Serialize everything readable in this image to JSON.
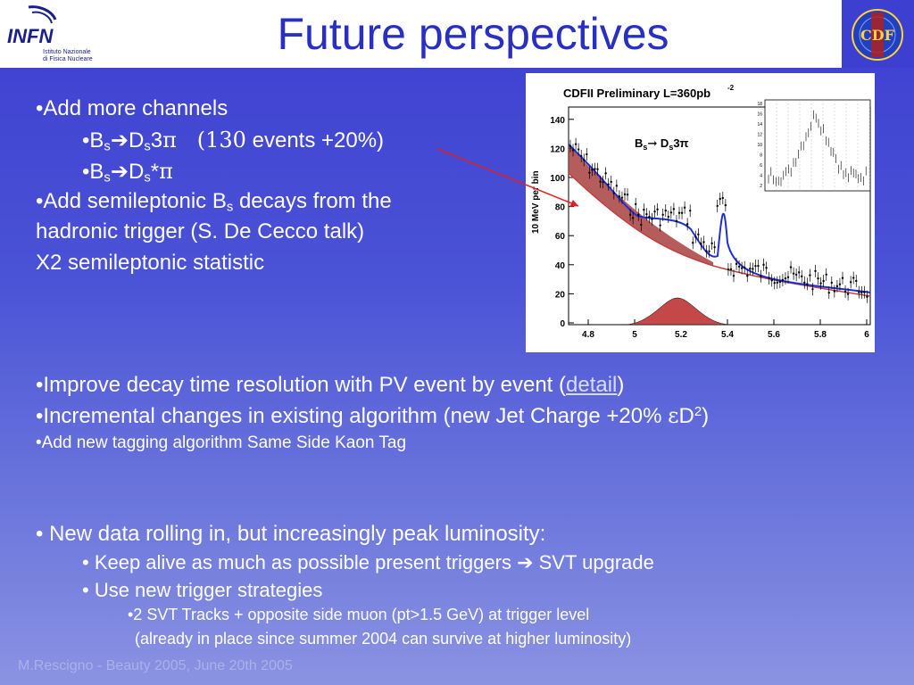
{
  "header": {
    "title": "Future perspectives",
    "infn_logo_text": "INFN",
    "infn_logo_sub1": "Istituto Nazionale",
    "infn_logo_sub2": "di Fisica Nucleare",
    "cdf_logo_text": "CDF"
  },
  "bullets_top": {
    "b1": "•Add more channels",
    "b1a_pre": "•B",
    "b1a_sub1": "s",
    "b1a_arrow": "➔",
    "b1a_d": "D",
    "b1a_sub2": "s",
    "b1a_mid": "3",
    "b1a_pi": "π",
    "b1a_paren": "   (130",
    "b1a_post": " events +20%)",
    "b1b_pre": "•B",
    "b1b_sub1": "s",
    "b1b_arrow": "➔",
    "b1b_d": "D",
    "b1b_sub2": "s",
    "b1b_star": "*",
    "b1b_pi": "π",
    "b2_pre": "•Add semileptonic B",
    "b2_sub": "s",
    "b2_post": " decays from the",
    "b2_line2": "hadronic trigger (S. De Cecco talk)",
    "b2_line3": "X2 semileptonic statistic"
  },
  "bullets_mid": {
    "c1_pre": "•Improve decay time resolution with PV event by event (",
    "c1_link": "detail",
    "c1_post": ")",
    "c2_pre": "•Incremental changes in existing algorithm (new Jet Charge +20% ",
    "c2_eps": "ε",
    "c2_d": "D",
    "c2_sup": "2",
    "c2_post": ")",
    "c3": "•Add new tagging algorithm Same Side Kaon Tag"
  },
  "bullets_bottom": {
    "d1": "• New data rolling in, but increasingly peak luminosity:",
    "d2_pre": "• Keep alive as much as possible present triggers ",
    "d2_arrow": "➔",
    "d2_post": " SVT upgrade",
    "d3": "• Use new trigger strategies",
    "d4": "•2 SVT Tracks + opposite side muon (pt>1.5 GeV) at trigger level",
    "d5": " (already in place since summer 2004 can survive at higher luminosity)"
  },
  "plot": {
    "title": "CDFII Preliminary L=360pb",
    "title_sup": "-2",
    "ylabel": "10 MeV per bin",
    "label": "B",
    "label_sub": "s",
    "label_arrow": "→",
    "label_d": " D",
    "label_sub2": "s",
    "label_rest": "3π",
    "xticks": [
      "4.8",
      "5",
      "5.2",
      "5.4",
      "5.6",
      "5.8",
      "6"
    ],
    "yticks": [
      "0",
      "20",
      "40",
      "60",
      "80",
      "100",
      "120",
      "140"
    ],
    "inset_yticks": [
      "18",
      "16",
      "14",
      "12",
      "10",
      "8",
      "6",
      "4",
      "2"
    ],
    "colors": {
      "fit": "#1f2fd8",
      "background_fill": "#a84040",
      "peak_fill": "#c44848",
      "arrow": "#e02020"
    }
  },
  "footer": {
    "text": "M.Rescigno - Beauty 2005,  June 20th 2005"
  }
}
